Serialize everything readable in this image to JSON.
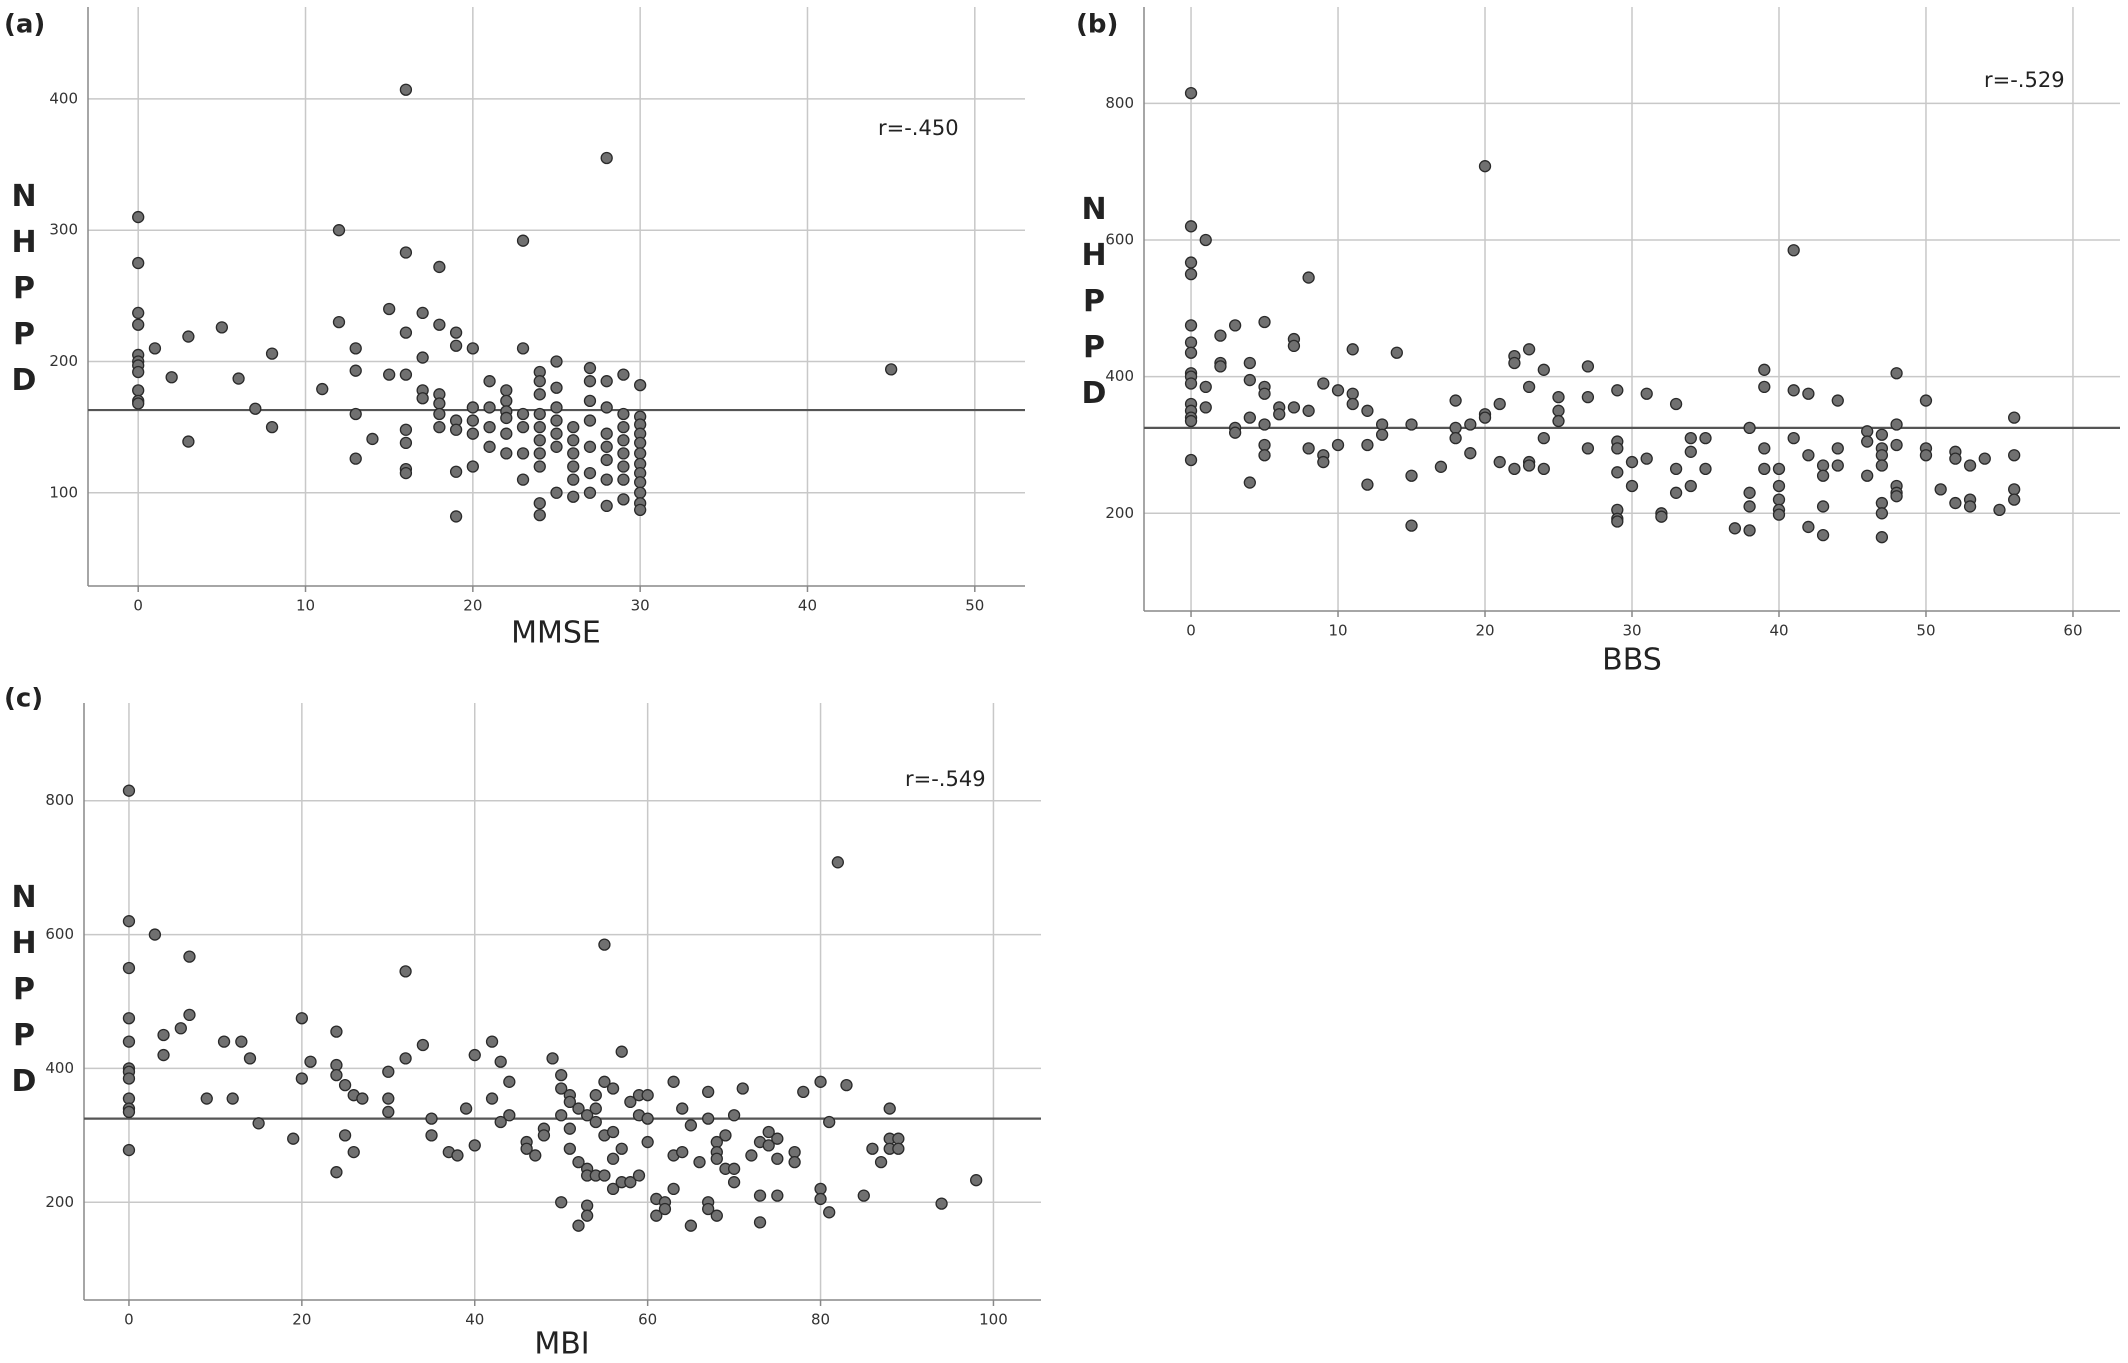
{
  "chart_data": [
    {
      "type": "scatter",
      "panel": "(a)",
      "x_label": "MMSE",
      "y_label": "NHPPD",
      "annotation": "r=-.450",
      "color": "#707070",
      "grid": true,
      "xlim": [
        -3,
        53
      ],
      "ylim": [
        29,
        470
      ],
      "xticks": [
        0,
        10,
        20,
        30,
        40,
        50
      ],
      "yticks": [
        100,
        200,
        300,
        400
      ],
      "reference_line": 163,
      "x": [
        0,
        0,
        0,
        0,
        0,
        0,
        0,
        0,
        0,
        0,
        0,
        1,
        2,
        3,
        3,
        5,
        6,
        7,
        8,
        8,
        11,
        12,
        12,
        13,
        13,
        13,
        13,
        14,
        15,
        15,
        16,
        16,
        16,
        16,
        16,
        16,
        16,
        16,
        17,
        17,
        17,
        17,
        18,
        18,
        18,
        18,
        18,
        18,
        19,
        19,
        19,
        19,
        19,
        19,
        20,
        20,
        20,
        20,
        20,
        21,
        21,
        21,
        21,
        22,
        22,
        22,
        22,
        22,
        22,
        23,
        23,
        23,
        23,
        23,
        23,
        24,
        24,
        24,
        24,
        24,
        24,
        24,
        24,
        24,
        24,
        25,
        25,
        25,
        25,
        25,
        25,
        25,
        26,
        26,
        26,
        26,
        26,
        26,
        27,
        27,
        27,
        27,
        27,
        27,
        27,
        28,
        28,
        28,
        28,
        28,
        28,
        28,
        28,
        29,
        29,
        29,
        29,
        29,
        29,
        29,
        29,
        30,
        30,
        30,
        30,
        30,
        30,
        30,
        30,
        30,
        30,
        30,
        30,
        45
      ],
      "values": [
        310,
        275,
        237,
        228,
        205,
        200,
        197,
        192,
        178,
        170,
        168,
        210,
        188,
        219,
        139,
        226,
        187,
        164,
        206,
        150,
        179,
        300,
        230,
        210,
        193,
        160,
        126,
        141,
        240,
        190,
        407,
        283,
        222,
        190,
        148,
        138,
        118,
        115,
        237,
        203,
        178,
        172,
        272,
        228,
        175,
        168,
        160,
        150,
        222,
        212,
        155,
        148,
        116,
        82,
        210,
        165,
        155,
        145,
        120,
        185,
        165,
        150,
        135,
        178,
        170,
        162,
        157,
        145,
        130,
        292,
        210,
        160,
        150,
        130,
        110,
        192,
        185,
        175,
        160,
        150,
        140,
        130,
        120,
        92,
        83,
        200,
        180,
        165,
        155,
        145,
        135,
        100,
        150,
        140,
        130,
        120,
        110,
        97,
        195,
        185,
        170,
        155,
        135,
        115,
        100,
        355,
        185,
        165,
        145,
        135,
        125,
        110,
        90,
        190,
        160,
        150,
        140,
        130,
        120,
        110,
        95,
        182,
        158,
        152,
        145,
        138,
        130,
        122,
        115,
        108,
        100,
        92,
        87,
        194
      ]
    },
    {
      "type": "scatter",
      "panel": "(b)",
      "x_label": "BBS",
      "y_label": "NHPPD",
      "annotation": "r=-.529",
      "color": "#707070",
      "grid": true,
      "xlim": [
        -3.2,
        63.2
      ],
      "ylim": [
        57,
        941
      ],
      "xticks": [
        0,
        10,
        20,
        30,
        40,
        50,
        60
      ],
      "yticks": [
        200,
        400,
        600,
        800
      ],
      "reference_line": 325,
      "x": [
        0,
        0,
        0,
        0,
        0,
        0,
        0,
        0,
        0,
        0,
        0,
        0,
        0,
        0,
        0,
        1,
        1,
        1,
        2,
        2,
        2,
        3,
        3,
        3,
        4,
        4,
        4,
        4,
        5,
        5,
        5,
        5,
        5,
        5,
        6,
        6,
        7,
        7,
        7,
        8,
        8,
        8,
        9,
        9,
        9,
        10,
        10,
        11,
        11,
        11,
        12,
        12,
        12,
        13,
        13,
        14,
        15,
        15,
        15,
        17,
        18,
        18,
        18,
        19,
        19,
        20,
        20,
        20,
        21,
        21,
        22,
        22,
        22,
        23,
        23,
        23,
        23,
        24,
        24,
        24,
        25,
        25,
        25,
        27,
        27,
        27,
        29,
        29,
        29,
        29,
        29,
        29,
        29,
        30,
        30,
        31,
        31,
        32,
        32,
        33,
        33,
        33,
        34,
        34,
        34,
        35,
        35,
        37,
        38,
        38,
        38,
        38,
        39,
        39,
        39,
        39,
        40,
        40,
        40,
        40,
        40,
        41,
        41,
        41,
        42,
        42,
        42,
        43,
        43,
        43,
        43,
        44,
        44,
        44,
        46,
        46,
        46,
        47,
        47,
        47,
        47,
        47,
        47,
        47,
        48,
        48,
        48,
        48,
        48,
        48,
        50,
        50,
        50,
        51,
        52,
        52,
        52,
        53,
        53,
        53,
        54,
        55,
        56,
        56,
        56,
        56
      ],
      "values": [
        815,
        620,
        567,
        550,
        475,
        450,
        435,
        405,
        400,
        390,
        360,
        350,
        340,
        335,
        278,
        600,
        385,
        355,
        460,
        420,
        415,
        475,
        325,
        318,
        420,
        395,
        340,
        245,
        480,
        385,
        375,
        330,
        300,
        285,
        355,
        345,
        455,
        445,
        355,
        545,
        350,
        295,
        390,
        285,
        275,
        380,
        300,
        440,
        375,
        360,
        350,
        300,
        242,
        330,
        315,
        435,
        330,
        255,
        182,
        268,
        365,
        325,
        310,
        330,
        288,
        708,
        345,
        340,
        360,
        275,
        430,
        420,
        265,
        440,
        385,
        275,
        270,
        410,
        310,
        265,
        370,
        350,
        335,
        415,
        370,
        295,
        380,
        305,
        295,
        260,
        205,
        192,
        188,
        240,
        275,
        375,
        280,
        200,
        195,
        360,
        265,
        230,
        310,
        290,
        240,
        265,
        310,
        178,
        325,
        230,
        210,
        175,
        410,
        385,
        295,
        265,
        265,
        240,
        220,
        205,
        198,
        585,
        380,
        310,
        375,
        285,
        180,
        270,
        255,
        210,
        168,
        365,
        295,
        270,
        320,
        305,
        255,
        315,
        295,
        285,
        270,
        215,
        200,
        165,
        405,
        330,
        300,
        240,
        230,
        225,
        365,
        295,
        285,
        235,
        290,
        280,
        215,
        270,
        220,
        210,
        280,
        205,
        340,
        285,
        235,
        220
      ]
    },
    {
      "type": "scatter",
      "panel": "(c)",
      "x_label": "MBI",
      "y_label": "NHPPD",
      "annotation": "r=-.549",
      "color": "#707070",
      "grid": true,
      "xlim": [
        -5.2,
        105.5
      ],
      "ylim": [
        54,
        946
      ],
      "xticks": [
        0,
        20,
        40,
        60,
        80,
        100
      ],
      "yticks": [
        200,
        400,
        600,
        800
      ],
      "reference_line": 325,
      "x": [
        0,
        0,
        0,
        0,
        0,
        0,
        0,
        0,
        0,
        0,
        0,
        0,
        3,
        4,
        4,
        6,
        7,
        7,
        9,
        11,
        12,
        13,
        14,
        15,
        19,
        20,
        20,
        21,
        24,
        24,
        24,
        24,
        25,
        25,
        26,
        26,
        27,
        30,
        30,
        30,
        32,
        32,
        34,
        35,
        35,
        37,
        38,
        39,
        40,
        40,
        42,
        42,
        43,
        43,
        44,
        44,
        46,
        46,
        47,
        48,
        48,
        49,
        50,
        50,
        50,
        50,
        51,
        51,
        51,
        51,
        52,
        52,
        52,
        53,
        53,
        53,
        53,
        53,
        54,
        54,
        54,
        54,
        55,
        55,
        55,
        55,
        56,
        56,
        56,
        56,
        57,
        57,
        57,
        58,
        58,
        59,
        59,
        59,
        60,
        60,
        60,
        61,
        61,
        62,
        62,
        63,
        63,
        63,
        64,
        64,
        65,
        65,
        66,
        67,
        67,
        67,
        67,
        68,
        68,
        68,
        68,
        69,
        69,
        70,
        70,
        70,
        71,
        72,
        73,
        73,
        73,
        74,
        74,
        75,
        75,
        75,
        77,
        77,
        78,
        80,
        80,
        80,
        81,
        81,
        82,
        83,
        85,
        86,
        87,
        88,
        88,
        88,
        89,
        89,
        94,
        98
      ],
      "values": [
        815,
        620,
        550,
        475,
        440,
        400,
        395,
        385,
        355,
        340,
        335,
        278,
        600,
        450,
        420,
        460,
        567,
        480,
        355,
        440,
        355,
        440,
        415,
        318,
        295,
        475,
        385,
        410,
        455,
        405,
        390,
        245,
        375,
        300,
        360,
        275,
        355,
        395,
        355,
        335,
        545,
        415,
        435,
        325,
        300,
        275,
        270,
        340,
        420,
        285,
        440,
        355,
        410,
        320,
        380,
        330,
        290,
        280,
        270,
        310,
        300,
        415,
        390,
        370,
        330,
        200,
        360,
        350,
        310,
        280,
        340,
        260,
        165,
        330,
        250,
        240,
        195,
        180,
        360,
        340,
        320,
        240,
        585,
        380,
        300,
        240,
        370,
        305,
        265,
        220,
        425,
        280,
        230,
        350,
        230,
        360,
        330,
        240,
        360,
        325,
        290,
        205,
        180,
        200,
        190,
        380,
        270,
        220,
        340,
        275,
        315,
        165,
        260,
        365,
        325,
        200,
        190,
        290,
        275,
        265,
        180,
        300,
        250,
        330,
        250,
        230,
        370,
        270,
        290,
        210,
        170,
        305,
        285,
        295,
        265,
        210,
        275,
        260,
        365,
        380,
        220,
        205,
        320,
        185,
        708,
        375,
        210,
        280,
        260,
        340,
        295,
        280,
        295,
        280,
        198,
        233
      ]
    }
  ]
}
